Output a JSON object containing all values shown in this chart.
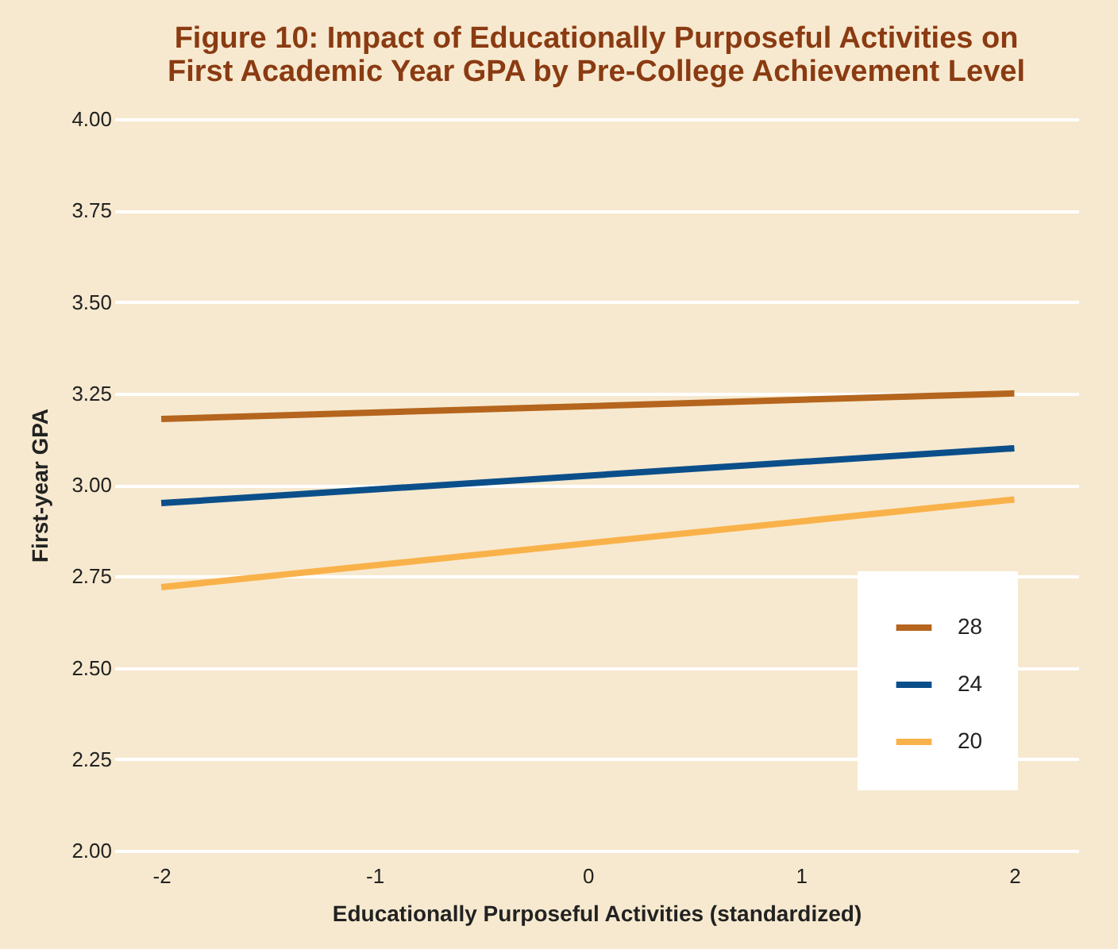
{
  "chart_data": {
    "type": "line",
    "title": [
      "Figure 10: Impact of Educationally Purposeful Activities on",
      "First Academic Year GPA by Pre-College Achievement Level"
    ],
    "xlabel": "Educationally Purposeful Activities (standardized)",
    "ylabel": "First-year GPA",
    "x": [
      -2,
      2
    ],
    "series": [
      {
        "name": "28",
        "color": "#b5651d",
        "values": [
          3.18,
          3.25
        ]
      },
      {
        "name": "24",
        "color": "#0b4f8a",
        "values": [
          2.95,
          3.1
        ]
      },
      {
        "name": "20",
        "color": "#f9b24a",
        "values": [
          2.72,
          2.96
        ]
      }
    ],
    "xlim": [
      -2.22,
      2.3
    ],
    "xticks": [
      -2,
      -1,
      0,
      1,
      2
    ],
    "ylim": [
      2.0,
      4.0
    ],
    "yticks": [
      {
        "value": 2.0,
        "label": "2.00"
      },
      {
        "value": 2.25,
        "label": "2.25"
      },
      {
        "value": 2.5,
        "label": "2.50"
      },
      {
        "value": 2.75,
        "label": "2.75"
      },
      {
        "value": 3.0,
        "label": "3.00"
      },
      {
        "value": 3.25,
        "label": "3.25"
      },
      {
        "value": 3.5,
        "label": "3.50"
      },
      {
        "value": 3.75,
        "label": "3.75"
      },
      {
        "value": 4.0,
        "label": "4.00"
      }
    ],
    "grid": "y",
    "legend": "bottom right",
    "marker": "none",
    "line_style": "solid"
  }
}
